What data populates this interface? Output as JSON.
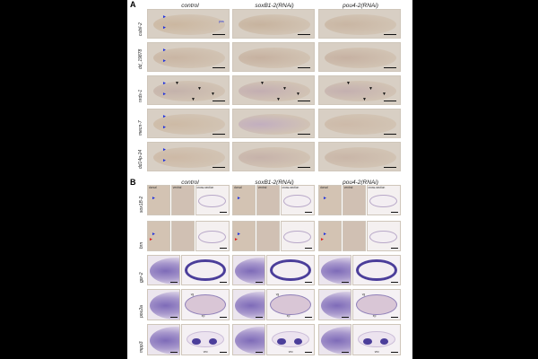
{
  "panels": {
    "a": "A",
    "b": "B"
  },
  "panelA": {
    "columns": [
      "control",
      "soxB1-2(RNAi)",
      "pou4-2(RNAi)"
    ],
    "rows": [
      "cubil-2",
      "dd_19878",
      "nrds-1",
      "mecn-7",
      "dd14p-24"
    ],
    "annotation": "pns"
  },
  "panelB": {
    "columns": [
      "control",
      "soxB1-2(RNAi)",
      "pou4-2(RNAi)"
    ],
    "rows": [
      "sox1B-2",
      "brn",
      "gpr-2",
      "pou2a",
      "mpp3"
    ],
    "subviews": {
      "dorsal": "dorsal",
      "ventral": "ventral",
      "cross": "cross-section"
    },
    "section_labels": {
      "vg": "vg",
      "ep": "ep",
      "vnc": "vnc"
    }
  }
}
